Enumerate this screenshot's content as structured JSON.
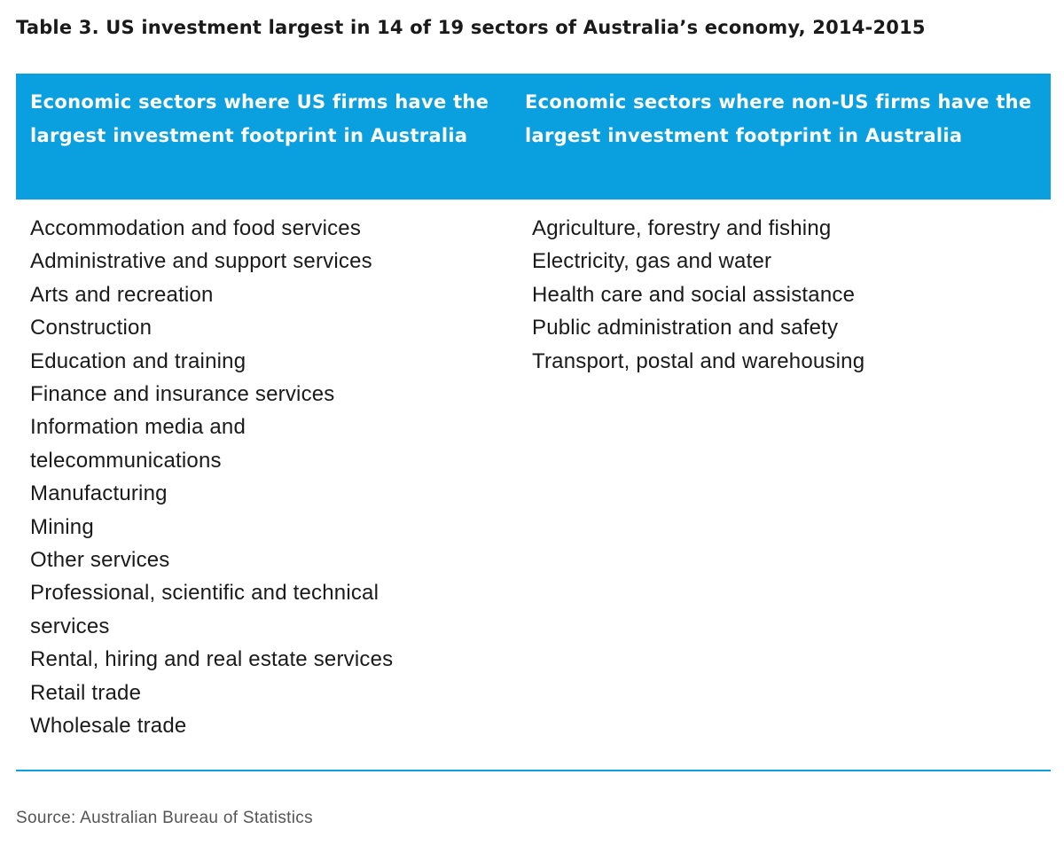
{
  "title": "Table 3. US investment largest in 14 of 19 sectors of Australia’s economy, 2014-2015",
  "table": {
    "header_color": "#0a9fdf",
    "columns": [
      {
        "heading": "Economic sectors where US firms have the largest investment footprint in Australia",
        "items": [
          "Accommodation and food services",
          "Administrative and support services",
          "Arts and recreation",
          "Construction",
          "Education and training",
          "Finance and insurance services",
          "Information media and telecommunications",
          "Manufacturing",
          "Mining",
          "Other services",
          "Professional, scientific and technical services",
          "Rental, hiring and real estate services",
          "Retail trade",
          "Wholesale trade"
        ]
      },
      {
        "heading": "Economic sectors where non-US firms have the largest investment footprint in Australia",
        "items": [
          "Agriculture, forestry and fishing",
          "Electricity, gas and water",
          "Health care and social assistance",
          "Public administration and safety",
          "Transport, postal and warehousing"
        ]
      }
    ]
  },
  "source": "Source: Australian Bureau of Statistics"
}
